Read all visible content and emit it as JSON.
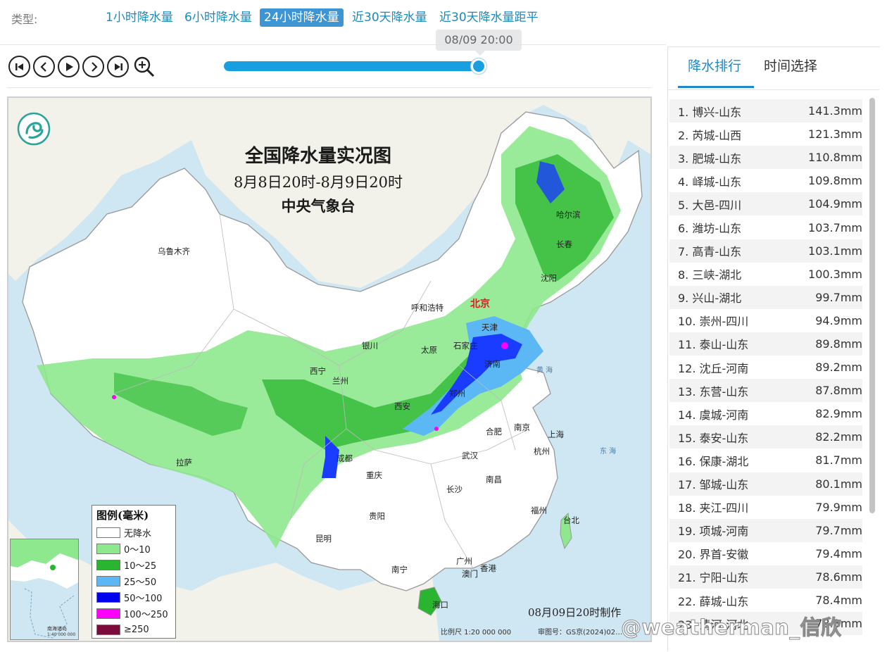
{
  "type_bar": {
    "label": "类型:",
    "items": [
      {
        "label": "1小时降水量",
        "active": false
      },
      {
        "label": "6小时降水量",
        "active": false
      },
      {
        "label": "24小时降水量",
        "active": true
      },
      {
        "label": "近30天降水量",
        "active": false
      },
      {
        "label": "近30天降水量距平",
        "active": false
      }
    ]
  },
  "timeline": {
    "current_time": "08/09 20:00",
    "progress": 1.0,
    "controls": [
      "first-icon",
      "previous-icon",
      "play-icon",
      "next-icon",
      "last-icon",
      "zoom-in-icon"
    ]
  },
  "map": {
    "title": "全国降水量实况图",
    "date_range": "8月8日20时-8月9日20时",
    "organization": "中央气象台",
    "made_time": "08月09日20时制作",
    "scale": "比例尺  1:20 000 000",
    "approval": "审图号：GS京(2024)02…",
    "inset_label": "南海诸岛",
    "inset_scale": "1:40 000 000",
    "capital": "北京",
    "cities": [
      "乌鲁木齐",
      "哈尔滨",
      "长春",
      "沈阳",
      "呼和浩特",
      "天津",
      "银川",
      "太原",
      "石家庄",
      "西宁",
      "兰州",
      "济南",
      "郑州",
      "西安",
      "合肥",
      "南京",
      "上海",
      "拉萨",
      "成都",
      "重庆",
      "武汉",
      "杭州",
      "长沙",
      "南昌",
      "贵阳",
      "福州",
      "台北",
      "昆明",
      "广州",
      "香港",
      "澳门",
      "南宁",
      "海口"
    ],
    "legend": {
      "title": "图例(毫米)",
      "items": [
        {
          "label": "无降水",
          "color": "#ffffff"
        },
        {
          "label": "0～10",
          "color": "#8ee88e"
        },
        {
          "label": "10～25",
          "color": "#29b52f"
        },
        {
          "label": "25～50",
          "color": "#5bb8f5"
        },
        {
          "label": "50～100",
          "color": "#0000f0"
        },
        {
          "label": "100～250",
          "color": "#ff00ff"
        },
        {
          "label": "≥250",
          "color": "#7a0b3a"
        }
      ]
    }
  },
  "panel": {
    "tabs": [
      "降水排行",
      "时间选择"
    ],
    "ranking": [
      {
        "place": "1. 博兴-山东",
        "value": "141.3mm"
      },
      {
        "place": "2. 芮城-山西",
        "value": "121.3mm"
      },
      {
        "place": "3. 肥城-山东",
        "value": "110.8mm"
      },
      {
        "place": "4. 峄城-山东",
        "value": "109.8mm"
      },
      {
        "place": "5. 大邑-四川",
        "value": "104.9mm"
      },
      {
        "place": "6. 潍坊-山东",
        "value": "103.7mm"
      },
      {
        "place": "7. 高青-山东",
        "value": "103.1mm"
      },
      {
        "place": "8. 三峡-湖北",
        "value": "100.3mm"
      },
      {
        "place": "9. 兴山-湖北",
        "value": "99.7mm"
      },
      {
        "place": "10. 崇州-四川",
        "value": "94.9mm"
      },
      {
        "place": "11. 泰山-山东",
        "value": "89.8mm"
      },
      {
        "place": "12. 沈丘-河南",
        "value": "89.2mm"
      },
      {
        "place": "13. 东营-山东",
        "value": "87.8mm"
      },
      {
        "place": "14. 虞城-河南",
        "value": "82.9mm"
      },
      {
        "place": "15. 泰安-山东",
        "value": "82.2mm"
      },
      {
        "place": "16. 保康-湖北",
        "value": "81.7mm"
      },
      {
        "place": "17. 邹城-山东",
        "value": "80.1mm"
      },
      {
        "place": "18. 夹江-四川",
        "value": "79.9mm"
      },
      {
        "place": "19. 项城-河南",
        "value": "79.7mm"
      },
      {
        "place": "20. 界首-安徽",
        "value": "79.4mm"
      },
      {
        "place": "21. 宁阳-山东",
        "value": "78.6mm"
      },
      {
        "place": "22. 薛城-山东",
        "value": "78.4mm"
      },
      {
        "place": "23. 清河-河北",
        "value": "78.3mm"
      }
    ]
  },
  "watermark": "@weatherman_信欣"
}
